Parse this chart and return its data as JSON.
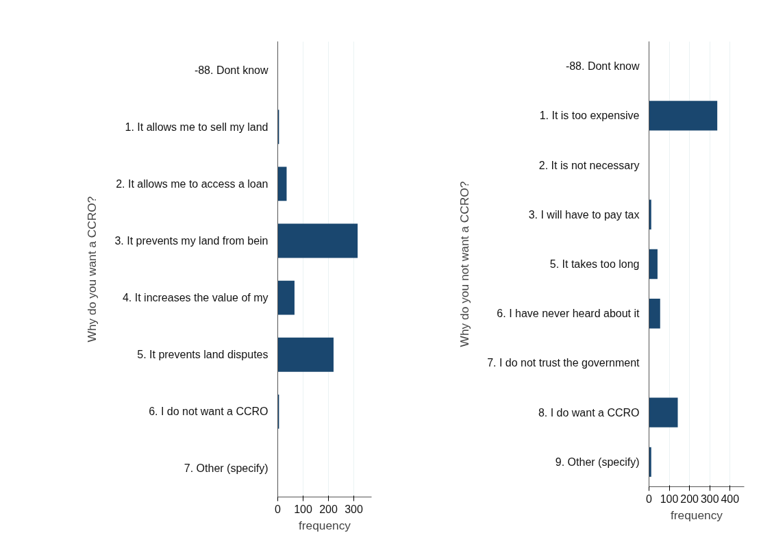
{
  "chart_data": [
    {
      "type": "bar",
      "orientation": "horizontal",
      "ylabel": "Why do you want a CCRO?",
      "xlabel": "frequency",
      "categories": [
        "-88. Dont know",
        "1. It allows me to sell my land",
        "2. It allows me to access a loan",
        "3. It prevents my land from bein",
        "4. It increases the value of my",
        "5. It prevents land disputes",
        "6. I do not want a CCRO",
        "7. Other (specify)"
      ],
      "series": [
        {
          "color": "#1a476f",
          "values": [
            0,
            5,
            35,
            315,
            66,
            220,
            5,
            0
          ]
        }
      ],
      "xlim": [
        0,
        370
      ],
      "xticks": [
        0,
        100,
        200,
        300
      ],
      "grid": "x"
    },
    {
      "type": "bar",
      "orientation": "horizontal",
      "ylabel": "Why do you not want a CCRO?",
      "xlabel": "frequency",
      "categories": [
        "-88. Dont know",
        "1. It is too expensive",
        "2. It is not necessary",
        "3. I will have to pay tax",
        "5. It takes too long",
        "6. I have never heard about it",
        "7. I do not trust the government",
        "8. I do want a CCRO",
        "9. Other (specify)"
      ],
      "series": [
        {
          "color": "#1a476f",
          "values": [
            0,
            337,
            0,
            11,
            42,
            55,
            0,
            142,
            11
          ]
        }
      ],
      "xlim": [
        0,
        470
      ],
      "xticks": [
        0,
        100,
        200,
        300,
        400
      ],
      "grid": "x"
    }
  ]
}
